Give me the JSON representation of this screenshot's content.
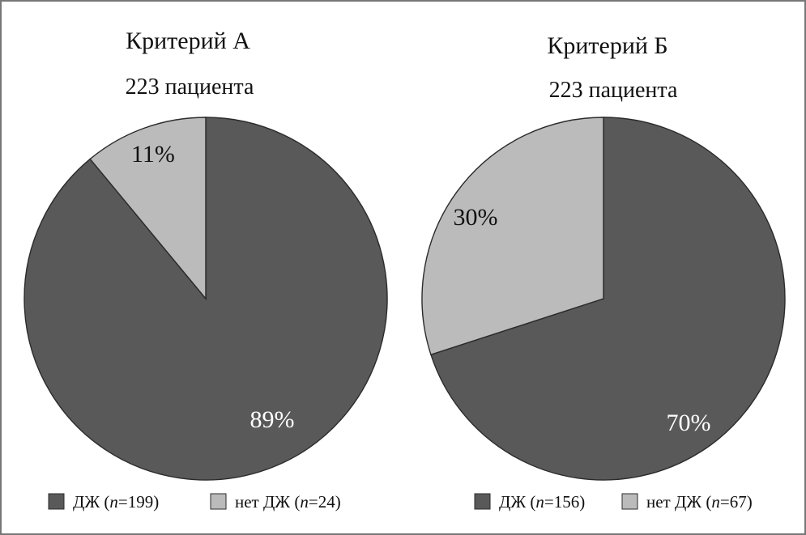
{
  "colors": {
    "dj": "#595959",
    "no_dj": "#bbbbbb",
    "label_on_dark": "#ffffff",
    "label_on_light": "#111111",
    "stroke": "#2b2b2b"
  },
  "chart_data": [
    {
      "type": "pie",
      "title": "Критерий А",
      "subtitle": "223 пациента",
      "slices": [
        {
          "key": "dj",
          "label": "89%",
          "value": 89,
          "n": 199,
          "legend_text": "ДЖ",
          "legend_n": "199"
        },
        {
          "key": "no_dj",
          "label": "11%",
          "value": 11,
          "n": 24,
          "legend_text": "нет ДЖ",
          "legend_n": "24"
        }
      ]
    },
    {
      "type": "pie",
      "title": "Критерий Б",
      "subtitle": "223 пациента",
      "slices": [
        {
          "key": "dj",
          "label": "70%",
          "value": 70,
          "n": 156,
          "legend_text": "ДЖ",
          "legend_n": "156"
        },
        {
          "key": "no_dj",
          "label": "30%",
          "value": 30,
          "n": 67,
          "legend_text": "нет ДЖ",
          "legend_n": "67"
        }
      ]
    }
  ]
}
